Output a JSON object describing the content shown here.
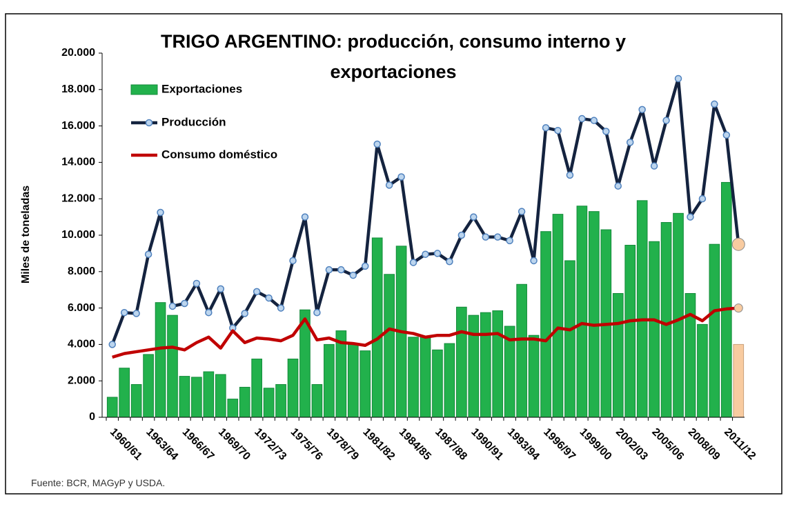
{
  "chart_data": {
    "type": "bar-line",
    "title": "TRIGO ARGENTINO: producción, consumo interno y exportaciones",
    "ylabel": "Miles de toneladas",
    "source": "Fuente: BCR, MAGyP y USDA.",
    "categories": [
      "1960/61",
      null,
      null,
      "1963/64",
      null,
      null,
      "1966/67",
      null,
      null,
      "1969/70",
      null,
      null,
      "1972/73",
      null,
      null,
      "1975/76",
      null,
      null,
      "1978/79",
      null,
      null,
      "1981/82",
      null,
      null,
      "1984/85",
      null,
      null,
      "1987/88",
      null,
      null,
      "1990/91",
      null,
      null,
      "1993/94",
      null,
      null,
      "1996/97",
      null,
      null,
      "1999/00",
      null,
      null,
      "2002/03",
      null,
      null,
      "2005/06",
      null,
      null,
      "2008/09",
      null,
      null,
      "2011/12",
      null
    ],
    "series": [
      {
        "name": "Exportaciones",
        "kind": "bar",
        "color": "#22b14c",
        "values": [
          1100,
          2700,
          1800,
          3450,
          6300,
          5600,
          2250,
          2200,
          2500,
          2350,
          1000,
          1650,
          3200,
          1600,
          1800,
          3200,
          5900,
          1800,
          4000,
          4750,
          4000,
          3650,
          9850,
          7850,
          9400,
          4400,
          4400,
          3700,
          4050,
          6050,
          5600,
          5750,
          5850,
          5000,
          7300,
          4500,
          10200,
          11150,
          8600,
          11600,
          11300,
          10300,
          6800,
          9450,
          11900,
          9650,
          10700,
          11200,
          6800,
          5100,
          9500,
          12900,
          4000
        ]
      },
      {
        "name": "Producción",
        "kind": "line-marker",
        "color": "#14233f",
        "values": [
          4000,
          5750,
          5700,
          8950,
          11250,
          6100,
          6250,
          7350,
          5750,
          7050,
          4900,
          5700,
          6900,
          6550,
          6000,
          8600,
          11000,
          5750,
          8100,
          8100,
          7800,
          8300,
          15000,
          12750,
          13200,
          8500,
          8950,
          9000,
          8550,
          10000,
          11000,
          9900,
          9900,
          9700,
          11300,
          8600,
          15900,
          15750,
          13300,
          16400,
          16300,
          15700,
          12700,
          15100,
          16900,
          13800,
          16300,
          18600,
          11000,
          12000,
          17200,
          15500,
          9500
        ]
      },
      {
        "name": "Consumo doméstico",
        "kind": "line",
        "color": "#c00000",
        "values": [
          3300,
          3500,
          3600,
          3700,
          3800,
          3850,
          3700,
          4100,
          4400,
          3800,
          4750,
          4100,
          4350,
          4300,
          4200,
          4500,
          5400,
          4250,
          4350,
          4100,
          4050,
          3950,
          4300,
          4850,
          4700,
          4600,
          4400,
          4500,
          4500,
          4700,
          4550,
          4550,
          4600,
          4250,
          4300,
          4300,
          4200,
          4900,
          4800,
          5150,
          5050,
          5100,
          5150,
          5300,
          5350,
          5350,
          5100,
          5350,
          5650,
          5300,
          5850,
          5950,
          6000
        ]
      }
    ],
    "projection_color": "#f8cba0",
    "ylim": [
      0,
      20000
    ],
    "yticks": [
      0,
      {
        "value": 2000,
        "label": "2.000"
      },
      {
        "value": 4000,
        "label": "4.000"
      },
      {
        "value": 6000,
        "label": "6.000"
      },
      {
        "value": 8000,
        "label": "8.000"
      },
      {
        "value": 10000,
        "label": "10.000"
      },
      {
        "value": 12000,
        "label": "12.000"
      },
      {
        "value": 14000,
        "label": "14.000"
      },
      {
        "value": 16000,
        "label": "16.000"
      },
      {
        "value": 18000,
        "label": "18.000"
      },
      {
        "value": 20000,
        "label": "20.000"
      }
    ],
    "grid": false,
    "legend": "upper-left"
  }
}
